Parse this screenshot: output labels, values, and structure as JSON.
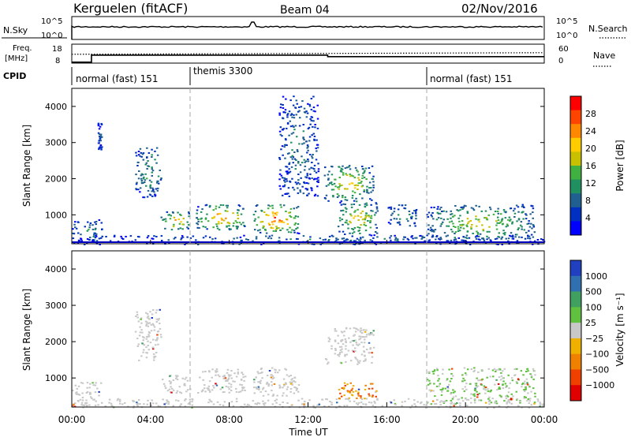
{
  "header": {
    "station": "Kerguelen (fitACF)",
    "beam": "Beam 04",
    "date": "02/Nov/2016"
  },
  "top_panel": {
    "left_label": "N.Sky",
    "right_label": "N.Search",
    "ticks_left": [
      "10^5",
      "10^0"
    ],
    "ticks_right": [
      "10^5",
      "10^0"
    ]
  },
  "freq_panel": {
    "left_label_line1": "Freq.",
    "left_label_line2": "[MHz]",
    "right_label": "Nave",
    "ticks_left": [
      "18",
      "8"
    ],
    "ticks_right": [
      "60",
      "0"
    ],
    "freq_steps": [
      {
        "t0": 0.0,
        "t1": 1.0,
        "mhz": 8.5
      },
      {
        "t0": 1.0,
        "t1": 13.0,
        "mhz": 12.2
      },
      {
        "t0": 13.0,
        "t1": 24.0,
        "mhz": 11.4
      }
    ],
    "nave_level": 0.55
  },
  "cpid": {
    "label": "CPID",
    "segments": [
      {
        "name": "normal (fast) 151",
        "start": 0
      },
      {
        "name": "themis 3300",
        "start": 6
      },
      {
        "name": "normal (fast) 151",
        "start": 18
      }
    ]
  },
  "chart_data": [
    {
      "type": "heatmap",
      "panel": "power",
      "ylabel": "Slant Range [km]",
      "yticks": [
        1000,
        2000,
        3000,
        4000
      ],
      "ylim": [
        200,
        4500
      ],
      "xlim": [
        0,
        24
      ],
      "colorbar_label": "Power [dB]",
      "colorbar_ticks": [
        "28",
        "24",
        "20",
        "16",
        "12",
        "8",
        "4"
      ],
      "colorbar_colors": [
        "#ff0000",
        "#ff4400",
        "#ff8800",
        "#ffcc00",
        "#c8c000",
        "#40b040",
        "#209060",
        "#206090",
        "#0030c0",
        "#0000ff"
      ],
      "scatter_regions": [
        {
          "t": [
            0.0,
            1.5
          ],
          "r": [
            250,
            900
          ],
          "level": 0.35
        },
        {
          "t": [
            1.3,
            1.5
          ],
          "r": [
            2800,
            3550
          ],
          "level": 0.2
        },
        {
          "t": [
            3.2,
            4.5
          ],
          "r": [
            1500,
            2900
          ],
          "level": 0.4
        },
        {
          "t": [
            4.5,
            6.0
          ],
          "r": [
            600,
            1100
          ],
          "level": 0.75
        },
        {
          "t": [
            6.3,
            8.8
          ],
          "r": [
            600,
            1300
          ],
          "level": 0.8
        },
        {
          "t": [
            9.2,
            11.5
          ],
          "r": [
            500,
            1300
          ],
          "level": 0.95
        },
        {
          "t": [
            10.5,
            12.5
          ],
          "r": [
            1500,
            4300
          ],
          "level": 0.3
        },
        {
          "t": [
            12.8,
            15.3
          ],
          "r": [
            1400,
            2400
          ],
          "level": 0.7
        },
        {
          "t": [
            13.5,
            15.5
          ],
          "r": [
            450,
            1400
          ],
          "level": 0.7
        },
        {
          "t": [
            16.0,
            17.5
          ],
          "r": [
            700,
            1300
          ],
          "level": 0.4
        },
        {
          "t": [
            18.0,
            23.5
          ],
          "r": [
            300,
            1300
          ],
          "level": 0.6
        },
        {
          "t": [
            0.0,
            24.0
          ],
          "r": [
            200,
            450
          ],
          "level": 0.25
        }
      ]
    },
    {
      "type": "heatmap",
      "panel": "velocity",
      "ylabel": "Slant Range [km]",
      "yticks": [
        1000,
        2000,
        3000,
        4000
      ],
      "ylim": [
        200,
        4500
      ],
      "xlim": [
        0,
        24
      ],
      "xticks": [
        "00:00",
        "04:00",
        "08:00",
        "12:00",
        "16:00",
        "20:00",
        "00:00"
      ],
      "xlabel": "Time UT",
      "colorbar_label": "Velocity [m s⁻¹]",
      "colorbar_ticks": [
        "1000",
        "500",
        "100",
        "25",
        "−25",
        "−100",
        "−500",
        "−1000"
      ],
      "colorbar_colors": [
        "#2040c0",
        "#3070b0",
        "#40a060",
        "#60c040",
        "#c8c8c8",
        "#f0b000",
        "#f08000",
        "#f04000",
        "#e00000"
      ],
      "scatter_regions": [
        {
          "t": [
            0.0,
            1.5
          ],
          "r": [
            250,
            900
          ],
          "level": 0.55
        },
        {
          "t": [
            3.2,
            4.5
          ],
          "r": [
            1500,
            2900
          ],
          "level": 0.5
        },
        {
          "t": [
            4.5,
            6.0
          ],
          "r": [
            600,
            1100
          ],
          "level": 0.5
        },
        {
          "t": [
            6.3,
            8.8
          ],
          "r": [
            600,
            1300
          ],
          "level": 0.5
        },
        {
          "t": [
            9.2,
            11.5
          ],
          "r": [
            500,
            1300
          ],
          "level": 0.5
        },
        {
          "t": [
            12.8,
            15.3
          ],
          "r": [
            1400,
            2400
          ],
          "level": 0.5
        },
        {
          "t": [
            13.5,
            15.5
          ],
          "r": [
            450,
            900
          ],
          "level": 0.75
        },
        {
          "t": [
            18.0,
            23.5
          ],
          "r": [
            300,
            1300
          ],
          "level": 0.4
        },
        {
          "t": [
            0.0,
            24.0
          ],
          "r": [
            200,
            450
          ],
          "level": 0.45
        }
      ]
    }
  ]
}
